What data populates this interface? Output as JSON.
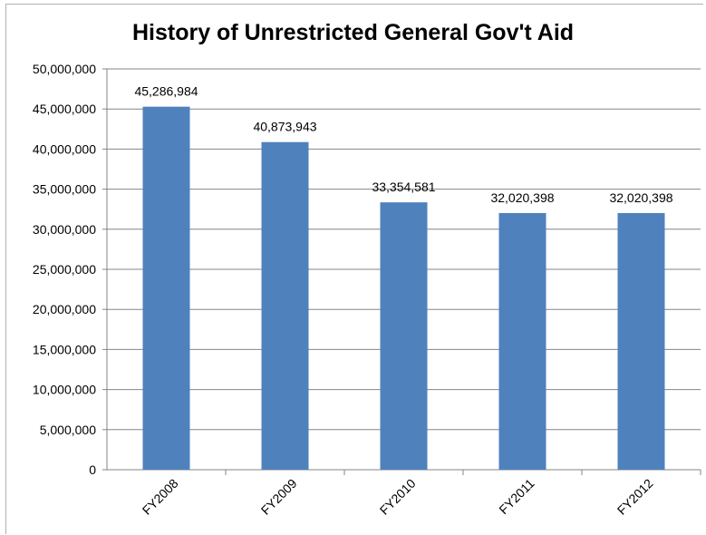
{
  "chart_data": {
    "type": "bar",
    "title": "History of Unrestricted General Gov't Aid",
    "xlabel": "",
    "ylabel": "",
    "categories": [
      "FY2008",
      "FY2009",
      "FY2010",
      "FY2011",
      "FY2012"
    ],
    "values": [
      45286984,
      40873943,
      33354581,
      32020398,
      32020398
    ],
    "data_labels": [
      "45,286,984",
      "40,873,943",
      "33,354,581",
      "32,020,398",
      "32,020,398"
    ],
    "ylim": [
      0,
      50000000
    ],
    "y_ticks": [
      0,
      5000000,
      10000000,
      15000000,
      20000000,
      25000000,
      30000000,
      35000000,
      40000000,
      45000000,
      50000000
    ],
    "y_tick_labels": [
      "0",
      "5,000,000",
      "10,000,000",
      "15,000,000",
      "20,000,000",
      "25,000,000",
      "30,000,000",
      "35,000,000",
      "40,000,000",
      "45,000,000",
      "50,000,000"
    ],
    "grid": true,
    "legend": "none",
    "bar_color": "#4f81bd",
    "grid_color": "#868686"
  }
}
